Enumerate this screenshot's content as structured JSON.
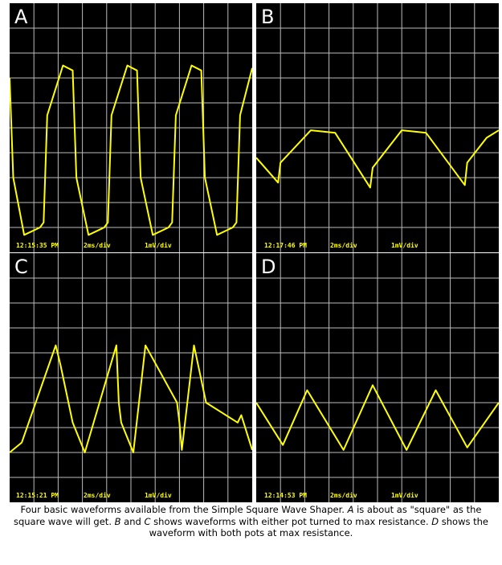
{
  "grid_color": "#bcbcbc",
  "trace_color": "#ffff00",
  "panels": [
    {
      "label": "A",
      "time": "12:15:35 PM",
      "hdiv": "2ms/div",
      "vdiv": "1mV/div"
    },
    {
      "label": "B",
      "time": "12:17:46 PM",
      "hdiv": "2ms/div",
      "vdiv": "1mV/div"
    },
    {
      "label": "C",
      "time": "12:15:21 PM",
      "hdiv": "2ms/div",
      "vdiv": "1mV/div"
    },
    {
      "label": "D",
      "time": "12:14:53 PM",
      "hdiv": "2ms/div",
      "vdiv": "1mV/div"
    }
  ],
  "caption": {
    "p1": "Four basic waveforms available from the Simple Square Wave Shaper. ",
    "a": "A",
    "p2": " is about as \"square\" as the square wave will get. ",
    "b": "B",
    "p3": " and ",
    "c": "C",
    "p4": " shows waveforms with either pot turned to max resistance. ",
    "d": "D",
    "p5": " shows the waveform with both pots at max resistance."
  },
  "chart_data": [
    {
      "type": "line",
      "panel": "A",
      "xlim": [
        0,
        20
      ],
      "ylim": [
        -5,
        5
      ],
      "series": [
        {
          "x": [
            0,
            0.3,
            1.2,
            2.5,
            2.8,
            3.1,
            4.4,
            5.2,
            5.5,
            6.5,
            7.8,
            8.1,
            8.4,
            9.7,
            10.5,
            10.8,
            11.8,
            13.1,
            13.4,
            13.7,
            15.0,
            15.8,
            16.1,
            17.1,
            18.4,
            18.7,
            19.0,
            20
          ],
          "y": [
            2.0,
            -2.0,
            -4.3,
            -4.0,
            -3.8,
            0.5,
            2.5,
            2.3,
            -2.0,
            -4.3,
            -4.0,
            -3.8,
            0.5,
            2.5,
            2.3,
            -2.0,
            -4.3,
            -4.0,
            -3.8,
            0.5,
            2.5,
            2.3,
            -2.0,
            -4.3,
            -4.0,
            -3.8,
            0.5,
            2.4
          ]
        }
      ]
    },
    {
      "type": "line",
      "panel": "B",
      "xlim": [
        0,
        20
      ],
      "ylim": [
        -5,
        5
      ],
      "series": [
        {
          "x": [
            0,
            1.8,
            2.0,
            4.5,
            6.5,
            9.4,
            9.6,
            12.0,
            14.0,
            17.2,
            17.4,
            19.0,
            20
          ],
          "y": [
            -1.2,
            -2.2,
            -1.4,
            -0.1,
            -0.2,
            -2.4,
            -1.6,
            -0.1,
            -0.2,
            -2.3,
            -1.4,
            -0.4,
            -0.1
          ]
        }
      ]
    },
    {
      "type": "line",
      "panel": "C",
      "xlim": [
        0,
        20
      ],
      "ylim": [
        -5,
        5
      ],
      "series": [
        {
          "x": [
            0,
            1.0,
            3.8,
            4.2,
            5.2,
            6.2,
            8.8,
            9.0,
            9.2,
            10.2,
            11.2,
            13.8,
            14.0,
            14.2,
            15.2,
            16.2,
            18.8,
            19.1,
            20
          ],
          "y": [
            -3.0,
            -2.6,
            1.3,
            0.5,
            -1.8,
            -3.0,
            1.3,
            -1.0,
            -1.8,
            -3.0,
            1.3,
            -1.0,
            -1.8,
            -2.9,
            1.3,
            -1.0,
            -1.8,
            -1.5,
            -2.9
          ]
        }
      ]
    },
    {
      "type": "line",
      "panel": "D",
      "xlim": [
        0,
        20
      ],
      "ylim": [
        -5,
        5
      ],
      "series": [
        {
          "x": [
            0,
            2.2,
            4.2,
            7.2,
            9.6,
            12.4,
            14.8,
            17.4,
            20
          ],
          "y": [
            -1.0,
            -2.7,
            -0.5,
            -2.9,
            -0.3,
            -2.9,
            -0.5,
            -2.8,
            -1.0
          ]
        }
      ]
    }
  ]
}
